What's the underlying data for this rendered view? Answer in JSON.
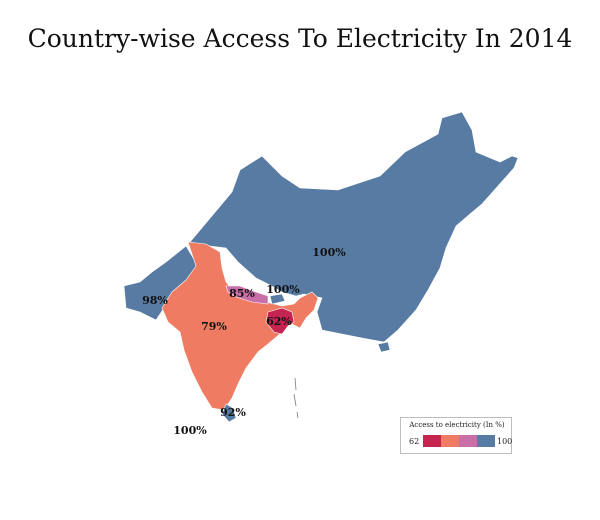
{
  "title": "Country-wise Access To Electricity In 2014",
  "colors": {
    "high": "#577BA3",
    "nepal": "#C96FA8",
    "india": "#EF7B62",
    "bangladesh": "#C4244F"
  },
  "regions": [
    {
      "name": "China",
      "label": "100%",
      "value": 100
    },
    {
      "name": "Pakistan",
      "label": "98%",
      "value": 98
    },
    {
      "name": "India",
      "label": "79%",
      "value": 79
    },
    {
      "name": "Nepal",
      "label": "85%",
      "value": 85
    },
    {
      "name": "Bhutan",
      "label": "100%",
      "value": 100
    },
    {
      "name": "Bangladesh",
      "label": "62%",
      "value": 62
    },
    {
      "name": "Sri Lanka",
      "label": "92%",
      "value": 92
    },
    {
      "name": "Maldives",
      "label": "100%",
      "value": 100
    }
  ],
  "legend": {
    "title": "Access to electricity (In %)",
    "min": "62",
    "max": "100",
    "colors": [
      "#C4244F",
      "#EF7B62",
      "#C96FA8",
      "#577BA3"
    ]
  }
}
